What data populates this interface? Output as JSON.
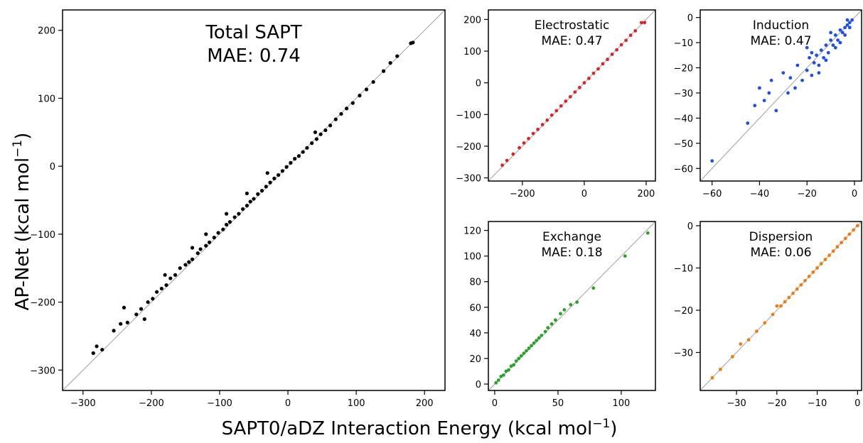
{
  "figure": {
    "xlabel": "SAPT0/aDZ Interaction Energy (kcal mol",
    "xlabel_sup": "−1",
    "xlabel_end": ")",
    "ylabel": "AP-Net (kcal mol",
    "ylabel_sup": "−1",
    "ylabel_end": ")"
  },
  "chart_data": [
    {
      "id": "total",
      "type": "scatter",
      "title": "Total SAPT",
      "subtitle": "MAE: 0.74",
      "color": "#000000",
      "xlim": [
        -330,
        230
      ],
      "ylim": [
        -330,
        230
      ],
      "xticks": [
        -300,
        -200,
        -100,
        0,
        100,
        200
      ],
      "yticks": [
        -300,
        -200,
        -100,
        0,
        100,
        200
      ],
      "diagonal": true,
      "series": [
        {
          "points": [
            [
              -285,
              -275
            ],
            [
              -280,
              -265
            ],
            [
              -272,
              -270
            ],
            [
              -255,
              -242
            ],
            [
              -245,
              -232
            ],
            [
              -235,
              -230
            ],
            [
              -222,
              -218
            ],
            [
              -215,
              -210
            ],
            [
              -205,
              -200
            ],
            [
              -198,
              -195
            ],
            [
              -192,
              -185
            ],
            [
              -185,
              -180
            ],
            [
              -178,
              -175
            ],
            [
              -172,
              -165
            ],
            [
              -165,
              -160
            ],
            [
              -158,
              -150
            ],
            [
              -150,
              -145
            ],
            [
              -145,
              -141
            ],
            [
              -140,
              -137
            ],
            [
              -132,
              -128
            ],
            [
              -128,
              -122
            ],
            [
              -120,
              -117
            ],
            [
              -115,
              -112
            ],
            [
              -108,
              -105
            ],
            [
              -102,
              -98
            ],
            [
              -95,
              -93
            ],
            [
              -90,
              -86
            ],
            [
              -85,
              -82
            ],
            [
              -78,
              -75
            ],
            [
              -72,
              -70
            ],
            [
              -66,
              -63
            ],
            [
              -60,
              -58
            ],
            [
              -55,
              -52
            ],
            [
              -50,
              -48
            ],
            [
              -44,
              -41
            ],
            [
              -38,
              -36
            ],
            [
              -32,
              -30
            ],
            [
              -26,
              -24
            ],
            [
              -20,
              -18
            ],
            [
              -14,
              -13
            ],
            [
              -8,
              -7
            ],
            [
              -2,
              -1
            ],
            [
              4,
              5
            ],
            [
              10,
              11
            ],
            [
              16,
              15
            ],
            [
              22,
              21
            ],
            [
              28,
              27
            ],
            [
              35,
              34
            ],
            [
              42,
              40
            ],
            [
              48,
              47
            ],
            [
              55,
              53
            ],
            [
              62,
              60
            ],
            [
              70,
              69
            ],
            [
              78,
              77
            ],
            [
              86,
              85
            ],
            [
              95,
              93
            ],
            [
              105,
              104
            ],
            [
              115,
              113
            ],
            [
              125,
              124
            ],
            [
              140,
              140
            ],
            [
              150,
              152
            ],
            [
              160,
              162
            ],
            [
              180,
              181
            ],
            [
              183,
              182
            ],
            [
              -240,
              -208
            ],
            [
              -180,
              -160
            ],
            [
              -120,
              -100
            ],
            [
              -60,
              -40
            ],
            [
              -210,
              -225
            ],
            [
              -140,
              -120
            ],
            [
              -90,
              -70
            ],
            [
              -30,
              -10
            ],
            [
              40,
              50
            ]
          ]
        }
      ]
    },
    {
      "id": "electrostatic",
      "type": "scatter",
      "title": "Electrostatic",
      "subtitle": "MAE: 0.47",
      "color": "#d62728",
      "xlim": [
        -310,
        230
      ],
      "ylim": [
        -310,
        230
      ],
      "xticks": [
        -200,
        0,
        200
      ],
      "yticks": [
        -300,
        -200,
        -100,
        0,
        100,
        200
      ],
      "diagonal": true,
      "series": [
        {
          "points": [
            [
              -265,
              -260
            ],
            [
              -250,
              -245
            ],
            [
              -230,
              -225
            ],
            [
              -210,
              -205
            ],
            [
              -195,
              -190
            ],
            [
              -180,
              -176
            ],
            [
              -165,
              -160
            ],
            [
              -150,
              -147
            ],
            [
              -135,
              -132
            ],
            [
              -120,
              -118
            ],
            [
              -105,
              -102
            ],
            [
              -90,
              -88
            ],
            [
              -75,
              -73
            ],
            [
              -60,
              -58
            ],
            [
              -45,
              -44
            ],
            [
              -30,
              -29
            ],
            [
              -15,
              -15
            ],
            [
              0,
              0
            ],
            [
              15,
              14
            ],
            [
              30,
              30
            ],
            [
              45,
              44
            ],
            [
              60,
              60
            ],
            [
              75,
              74
            ],
            [
              90,
              90
            ],
            [
              105,
              104
            ],
            [
              120,
              120
            ],
            [
              135,
              134
            ],
            [
              150,
              150
            ],
            [
              165,
              164
            ],
            [
              185,
              190
            ],
            [
              195,
              190
            ]
          ]
        }
      ]
    },
    {
      "id": "induction",
      "type": "scatter",
      "title": "Induction",
      "subtitle": "MAE: 0.47",
      "color": "#1f4fe0",
      "xlim": [
        -65,
        3
      ],
      "ylim": [
        -65,
        3
      ],
      "xticks": [
        -60,
        -40,
        -20,
        0
      ],
      "yticks": [
        -60,
        -50,
        -40,
        -30,
        -20,
        -10,
        0
      ],
      "diagonal": true,
      "series": [
        {
          "points": [
            [
              -60,
              -57
            ],
            [
              -45,
              -42
            ],
            [
              -42,
              -35
            ],
            [
              -40,
              -28
            ],
            [
              -38,
              -33
            ],
            [
              -36,
              -30
            ],
            [
              -35,
              -25
            ],
            [
              -33,
              -37
            ],
            [
              -30,
              -22
            ],
            [
              -28,
              -30
            ],
            [
              -27,
              -24
            ],
            [
              -25,
              -28
            ],
            [
              -24,
              -19
            ],
            [
              -22,
              -25
            ],
            [
              -20,
              -21
            ],
            [
              -19,
              -16
            ],
            [
              -18,
              -23
            ],
            [
              -17,
              -18
            ],
            [
              -16,
              -15
            ],
            [
              -15,
              -19
            ],
            [
              -14,
              -13
            ],
            [
              -13,
              -16
            ],
            [
              -12,
              -11
            ],
            [
              -11,
              -14
            ],
            [
              -10,
              -9
            ],
            [
              -9,
              -11
            ],
            [
              -8,
              -7
            ],
            [
              -7,
              -9
            ],
            [
              -6,
              -5
            ],
            [
              -5,
              -6
            ],
            [
              -4,
              -4
            ],
            [
              -3,
              -3
            ],
            [
              -2,
              -2
            ],
            [
              -1,
              -1
            ],
            [
              -12,
              -17
            ],
            [
              -15,
              -22
            ],
            [
              -8,
              -12
            ],
            [
              -10,
              -6
            ],
            [
              -18,
              -14
            ],
            [
              -20,
              -12
            ],
            [
              -6,
              -10
            ],
            [
              -4,
              -7
            ],
            [
              -3,
              -1
            ],
            [
              -2,
              -4
            ]
          ]
        }
      ]
    },
    {
      "id": "exchange",
      "type": "scatter",
      "title": "Exchange",
      "subtitle": "MAE: 0.18",
      "color": "#2ca02c",
      "xlim": [
        -5,
        127
      ],
      "ylim": [
        -5,
        127
      ],
      "xticks": [
        0,
        50,
        100
      ],
      "yticks": [
        0,
        20,
        40,
        60,
        80,
        100,
        120
      ],
      "diagonal": true,
      "series": [
        {
          "points": [
            [
              1,
              1
            ],
            [
              3,
              3
            ],
            [
              5,
              6
            ],
            [
              7,
              7
            ],
            [
              9,
              10
            ],
            [
              11,
              11
            ],
            [
              13,
              14
            ],
            [
              15,
              15
            ],
            [
              17,
              18
            ],
            [
              19,
              20
            ],
            [
              21,
              22
            ],
            [
              23,
              24
            ],
            [
              25,
              26
            ],
            [
              27,
              28
            ],
            [
              29,
              30
            ],
            [
              31,
              32
            ],
            [
              33,
              34
            ],
            [
              35,
              36
            ],
            [
              37,
              38
            ],
            [
              40,
              41
            ],
            [
              42,
              44
            ],
            [
              45,
              47
            ],
            [
              48,
              50
            ],
            [
              52,
              55
            ],
            [
              55,
              58
            ],
            [
              60,
              62
            ],
            [
              65,
              64
            ],
            [
              78,
              75
            ],
            [
              103,
              100
            ],
            [
              121,
              118
            ]
          ]
        }
      ]
    },
    {
      "id": "dispersion",
      "type": "scatter",
      "title": "Dispersion",
      "subtitle": "MAE: 0.06",
      "color": "#f07c10",
      "xlim": [
        -39,
        1
      ],
      "ylim": [
        -39,
        1
      ],
      "xticks": [
        -30,
        -20,
        -10,
        0
      ],
      "yticks": [
        -30,
        -20,
        -10,
        0
      ],
      "diagonal": true,
      "series": [
        {
          "points": [
            [
              -36,
              -36
            ],
            [
              -34,
              -34
            ],
            [
              -31,
              -31
            ],
            [
              -29,
              -28
            ],
            [
              -27,
              -27
            ],
            [
              -25,
              -25
            ],
            [
              -23,
              -23
            ],
            [
              -21,
              -21
            ],
            [
              -20,
              -19
            ],
            [
              -19,
              -19
            ],
            [
              -18,
              -18
            ],
            [
              -17,
              -17
            ],
            [
              -16,
              -16
            ],
            [
              -15,
              -15
            ],
            [
              -14,
              -14
            ],
            [
              -13,
              -13
            ],
            [
              -12,
              -12
            ],
            [
              -11,
              -11
            ],
            [
              -10,
              -10
            ],
            [
              -9,
              -9
            ],
            [
              -8,
              -8
            ],
            [
              -7,
              -7
            ],
            [
              -6,
              -6
            ],
            [
              -5,
              -5
            ],
            [
              -4,
              -4
            ],
            [
              -3,
              -3
            ],
            [
              -2,
              -2
            ],
            [
              -1,
              -1
            ],
            [
              0,
              0
            ]
          ]
        }
      ]
    }
  ]
}
